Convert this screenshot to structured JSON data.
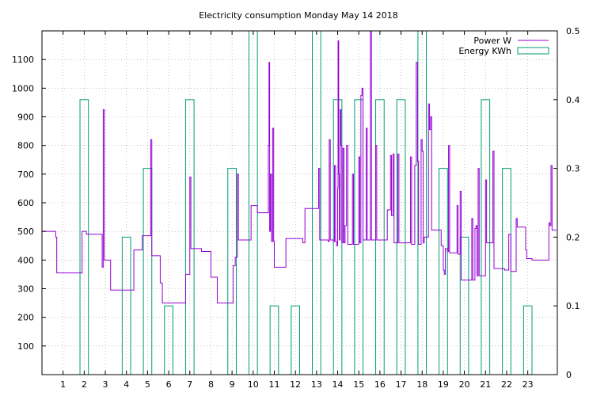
{
  "chart_data": {
    "type": "line",
    "title": "Electricity consumption Monday May 14 2018",
    "xlabel": "",
    "ylabel": "",
    "y2label": "",
    "xlim": [
      0,
      24.4
    ],
    "ylim": [
      0,
      1200
    ],
    "y2lim": [
      0,
      0.5
    ],
    "x_ticks": [
      "1",
      "2",
      "3",
      "4",
      "5",
      "6",
      "7",
      "8",
      "9",
      "10",
      "11",
      "12",
      "13",
      "14",
      "15",
      "16",
      "17",
      "18",
      "19",
      "20",
      "21",
      "22",
      "23"
    ],
    "y_ticks": [
      "100",
      "200",
      "300",
      "400",
      "500",
      "600",
      "700",
      "800",
      "900",
      "1000",
      "1100"
    ],
    "y2_ticks": [
      "0",
      "0.1",
      "0.2",
      "0.3",
      "0.4",
      "0.5"
    ],
    "grid": true,
    "legend": "top-right",
    "colors": {
      "power": "#9400d3",
      "energy": "#009e73"
    },
    "series": [
      {
        "name": "Power W",
        "axis": "left",
        "style": "step",
        "points": [
          [
            0.0,
            500
          ],
          [
            0.6,
            500
          ],
          [
            0.65,
            480
          ],
          [
            0.7,
            355
          ],
          [
            1.85,
            355
          ],
          [
            1.9,
            500
          ],
          [
            2.1,
            490
          ],
          [
            2.8,
            490
          ],
          [
            2.85,
            375
          ],
          [
            2.9,
            925
          ],
          [
            2.95,
            400
          ],
          [
            3.2,
            400
          ],
          [
            3.25,
            295
          ],
          [
            4.3,
            295
          ],
          [
            4.35,
            435
          ],
          [
            4.7,
            435
          ],
          [
            4.75,
            485
          ],
          [
            5.1,
            485
          ],
          [
            5.15,
            820
          ],
          [
            5.2,
            415
          ],
          [
            5.55,
            415
          ],
          [
            5.6,
            320
          ],
          [
            5.7,
            250
          ],
          [
            6.75,
            250
          ],
          [
            6.8,
            350
          ],
          [
            6.95,
            350
          ],
          [
            7.0,
            690
          ],
          [
            7.05,
            440
          ],
          [
            7.5,
            440
          ],
          [
            7.55,
            430
          ],
          [
            7.95,
            430
          ],
          [
            8.0,
            340
          ],
          [
            8.25,
            340
          ],
          [
            8.3,
            250
          ],
          [
            9.0,
            250
          ],
          [
            9.05,
            380
          ],
          [
            9.15,
            410
          ],
          [
            9.25,
            700
          ],
          [
            9.3,
            470
          ],
          [
            9.85,
            470
          ],
          [
            9.9,
            590
          ],
          [
            10.15,
            590
          ],
          [
            10.2,
            565
          ],
          [
            10.7,
            565
          ],
          [
            10.72,
            800
          ],
          [
            10.75,
            1090
          ],
          [
            10.78,
            500
          ],
          [
            10.82,
            700
          ],
          [
            10.87,
            465
          ],
          [
            10.92,
            860
          ],
          [
            10.97,
            465
          ],
          [
            11.0,
            375
          ],
          [
            11.5,
            375
          ],
          [
            11.55,
            475
          ],
          [
            12.3,
            475
          ],
          [
            12.35,
            460
          ],
          [
            12.45,
            580
          ],
          [
            13.05,
            580
          ],
          [
            13.1,
            720
          ],
          [
            13.15,
            470
          ],
          [
            13.55,
            465
          ],
          [
            13.6,
            820
          ],
          [
            13.65,
            470
          ],
          [
            13.8,
            465
          ],
          [
            13.85,
            730
          ],
          [
            13.9,
            465
          ],
          [
            13.95,
            450
          ],
          [
            14.0,
            650
          ],
          [
            14.02,
            1165
          ],
          [
            14.05,
            700
          ],
          [
            14.08,
            470
          ],
          [
            14.12,
            925
          ],
          [
            14.16,
            800
          ],
          [
            14.2,
            460
          ],
          [
            14.25,
            790
          ],
          [
            14.3,
            460
          ],
          [
            14.35,
            520
          ],
          [
            14.42,
            800
          ],
          [
            14.48,
            455
          ],
          [
            14.65,
            455
          ],
          [
            14.7,
            700
          ],
          [
            14.75,
            455
          ],
          [
            14.95,
            455
          ],
          [
            15.0,
            760
          ],
          [
            15.05,
            460
          ],
          [
            15.1,
            975
          ],
          [
            15.15,
            1000
          ],
          [
            15.2,
            470
          ],
          [
            15.3,
            470
          ],
          [
            15.35,
            860
          ],
          [
            15.4,
            470
          ],
          [
            15.5,
            470
          ],
          [
            15.55,
            1200
          ],
          [
            15.6,
            470
          ],
          [
            15.75,
            470
          ],
          [
            15.8,
            800
          ],
          [
            15.85,
            470
          ],
          [
            16.3,
            470
          ],
          [
            16.35,
            575
          ],
          [
            16.45,
            575
          ],
          [
            16.5,
            765
          ],
          [
            16.55,
            555
          ],
          [
            16.62,
            770
          ],
          [
            16.67,
            460
          ],
          [
            16.85,
            770
          ],
          [
            16.9,
            460
          ],
          [
            17.4,
            460
          ],
          [
            17.45,
            760
          ],
          [
            17.5,
            455
          ],
          [
            17.6,
            455
          ],
          [
            17.65,
            730
          ],
          [
            17.72,
            1090
          ],
          [
            17.78,
            745
          ],
          [
            17.83,
            455
          ],
          [
            17.9,
            455
          ],
          [
            17.95,
            820
          ],
          [
            18.0,
            780
          ],
          [
            18.05,
            460
          ],
          [
            18.1,
            480
          ],
          [
            18.25,
            480
          ],
          [
            18.3,
            945
          ],
          [
            18.35,
            855
          ],
          [
            18.4,
            900
          ],
          [
            18.45,
            505
          ],
          [
            18.85,
            505
          ],
          [
            18.9,
            450
          ],
          [
            19.0,
            365
          ],
          [
            19.05,
            350
          ],
          [
            19.1,
            440
          ],
          [
            19.2,
            430
          ],
          [
            19.25,
            800
          ],
          [
            19.3,
            425
          ],
          [
            19.6,
            425
          ],
          [
            19.65,
            590
          ],
          [
            19.7,
            420
          ],
          [
            19.8,
            640
          ],
          [
            19.85,
            330
          ],
          [
            20.3,
            330
          ],
          [
            20.35,
            545
          ],
          [
            20.4,
            330
          ],
          [
            20.5,
            510
          ],
          [
            20.55,
            520
          ],
          [
            20.6,
            345
          ],
          [
            20.65,
            720
          ],
          [
            20.7,
            345
          ],
          [
            20.95,
            345
          ],
          [
            21.0,
            680
          ],
          [
            21.05,
            460
          ],
          [
            21.3,
            460
          ],
          [
            21.35,
            780
          ],
          [
            21.4,
            370
          ],
          [
            21.85,
            370
          ],
          [
            21.9,
            365
          ],
          [
            22.05,
            365
          ],
          [
            22.1,
            490
          ],
          [
            22.2,
            360
          ],
          [
            22.4,
            360
          ],
          [
            22.45,
            545
          ],
          [
            22.5,
            515
          ],
          [
            22.85,
            515
          ],
          [
            22.9,
            435
          ],
          [
            22.95,
            405
          ],
          [
            23.2,
            400
          ],
          [
            23.95,
            400
          ],
          [
            24.0,
            530
          ],
          [
            24.05,
            520
          ],
          [
            24.1,
            730
          ],
          [
            24.15,
            505
          ],
          [
            24.35,
            505
          ]
        ]
      },
      {
        "name": "Energy KWh",
        "axis": "right",
        "style": "boxes",
        "boxes": [
          [
            2,
            0.4
          ],
          [
            4,
            0.2
          ],
          [
            5,
            0.3
          ],
          [
            6,
            0.1
          ],
          [
            7,
            0.4
          ],
          [
            9,
            0.3
          ],
          [
            10,
            0.5
          ],
          [
            11,
            0.1
          ],
          [
            12,
            0.1
          ],
          [
            13,
            0.5
          ],
          [
            14,
            0.4
          ],
          [
            15,
            0.4
          ],
          [
            16,
            0.4
          ],
          [
            17,
            0.4
          ],
          [
            18,
            0.5
          ],
          [
            19,
            0.3
          ],
          [
            20,
            0.2
          ],
          [
            21,
            0.4
          ],
          [
            22,
            0.3
          ],
          [
            23,
            0.1
          ]
        ]
      }
    ]
  }
}
